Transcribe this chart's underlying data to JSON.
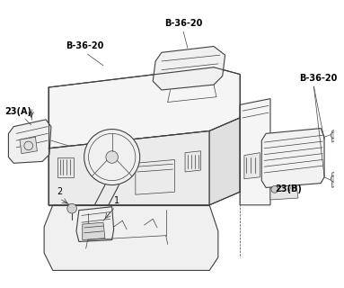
{
  "background_color": "#ffffff",
  "line_color": "#404040",
  "label_color": "#000000",
  "labels": {
    "b36_20_left": "B-36-20",
    "b36_20_center": "B-36-20",
    "b36_20_right": "B-36-20",
    "label_23A": "23(A)",
    "label_23B": "23(B)",
    "label_1": "1",
    "label_2": "2"
  },
  "figsize": [
    3.83,
    3.2
  ],
  "dpi": 100
}
